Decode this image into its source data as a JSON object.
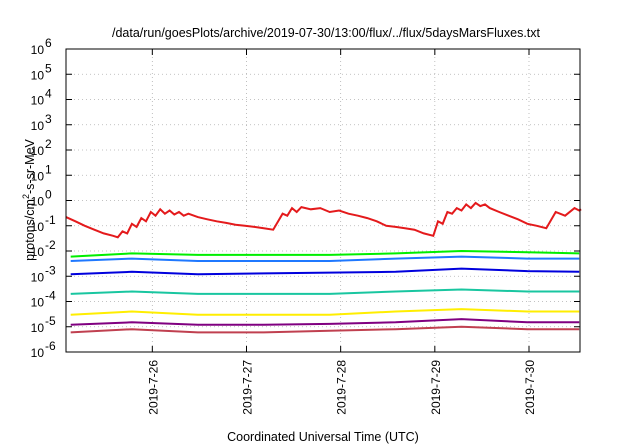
{
  "chart_data": {
    "type": "line",
    "title": "/data/run/goesPlots/archive/2019-07-30/13:00/flux/../flux/5daysMarsFluxes.txt",
    "xlabel": "Coordinated Universal Time (UTC)",
    "ylabel": "protons/cm2-s-sr-MeV",
    "yscale": "log",
    "ylim": [
      1e-06,
      1000000.0
    ],
    "xlim": [
      "2019-07-25 02:00",
      "2019-07-30 13:00"
    ],
    "grid": true,
    "legend": "none",
    "x_ticks": [
      "2019-7-26",
      "2019-7-27",
      "2019-7-28",
      "2019-7-29",
      "2019-7-30"
    ],
    "y_ticks": [
      {
        "value": 1e-06,
        "mantissa": "10",
        "exp": "-6"
      },
      {
        "value": 1e-05,
        "mantissa": "10",
        "exp": "-5"
      },
      {
        "value": 0.0001,
        "mantissa": "10",
        "exp": "-4"
      },
      {
        "value": 0.001,
        "mantissa": "10",
        "exp": "-3"
      },
      {
        "value": 0.01,
        "mantissa": "10",
        "exp": "-2"
      },
      {
        "value": 0.1,
        "mantissa": "10",
        "exp": "-1"
      },
      {
        "value": 1,
        "mantissa": "10",
        "exp": "0"
      },
      {
        "value": 10,
        "mantissa": "10",
        "exp": "1"
      },
      {
        "value": 100,
        "mantissa": "10",
        "exp": "2"
      },
      {
        "value": 1000,
        "mantissa": "10",
        "exp": "3"
      },
      {
        "value": 10000,
        "mantissa": "10",
        "exp": "4"
      },
      {
        "value": 100000,
        "mantissa": "10",
        "exp": "5"
      },
      {
        "value": 1000000,
        "mantissa": "10",
        "exp": "6"
      }
    ],
    "series": [
      {
        "color": "#e41a1c",
        "x": [
          0,
          0.1,
          0.2,
          0.3,
          0.4,
          0.5,
          0.55,
          0.6,
          0.65,
          0.7,
          0.75,
          0.8,
          0.85,
          0.9,
          0.95,
          1,
          1.05,
          1.1,
          1.15,
          1.2,
          1.25,
          1.3,
          1.4,
          1.5,
          1.6,
          1.7,
          1.8,
          1.9,
          2,
          2.1,
          2.2,
          2.3,
          2.35,
          2.4,
          2.45,
          2.5,
          2.6,
          2.7,
          2.8,
          2.9,
          3,
          3.1,
          3.2,
          3.3,
          3.4,
          3.5,
          3.6,
          3.7,
          3.8,
          3.9,
          3.95,
          4,
          4.05,
          4.1,
          4.15,
          4.2,
          4.25,
          4.3,
          4.35,
          4.4,
          4.45,
          4.5,
          4.6,
          4.7,
          4.8,
          4.9,
          5,
          5.1,
          5.2,
          5.3,
          5.4,
          5.45,
          5.47
        ],
        "y": [
          0.22,
          0.15,
          0.1,
          0.07,
          0.05,
          0.04,
          0.035,
          0.06,
          0.05,
          0.12,
          0.09,
          0.2,
          0.15,
          0.35,
          0.25,
          0.45,
          0.3,
          0.4,
          0.28,
          0.35,
          0.25,
          0.3,
          0.22,
          0.18,
          0.15,
          0.13,
          0.11,
          0.1,
          0.09,
          0.08,
          0.07,
          0.3,
          0.25,
          0.5,
          0.35,
          0.55,
          0.45,
          0.5,
          0.35,
          0.4,
          0.3,
          0.25,
          0.2,
          0.15,
          0.1,
          0.09,
          0.08,
          0.07,
          0.05,
          0.04,
          0.15,
          0.12,
          0.35,
          0.3,
          0.5,
          0.4,
          0.7,
          0.5,
          0.8,
          0.6,
          0.7,
          0.5,
          0.35,
          0.25,
          0.18,
          0.12,
          0.1,
          0.08,
          0.35,
          0.25,
          0.5,
          0.4,
          0.45
        ]
      },
      {
        "color": "#00ee00",
        "x": [
          0.05,
          0.7,
          1.4,
          2.1,
          2.8,
          3.5,
          4.2,
          4.9,
          5.45
        ],
        "y": [
          0.006,
          0.008,
          0.007,
          0.007,
          0.007,
          0.008,
          0.01,
          0.009,
          0.008
        ]
      },
      {
        "color": "#1f78ff",
        "x": [
          0.05,
          0.7,
          1.4,
          2.1,
          2.8,
          3.5,
          4.2,
          4.9,
          5.45
        ],
        "y": [
          0.004,
          0.005,
          0.004,
          0.004,
          0.004,
          0.005,
          0.006,
          0.005,
          0.005
        ]
      },
      {
        "color": "#0000dd",
        "x": [
          0.05,
          0.7,
          1.4,
          2.1,
          2.8,
          3.5,
          4.2,
          4.9,
          5.45
        ],
        "y": [
          0.0012,
          0.0015,
          0.0012,
          0.0013,
          0.0014,
          0.0015,
          0.002,
          0.0016,
          0.0015
        ]
      },
      {
        "color": "#19c6a0",
        "x": [
          0.05,
          0.7,
          1.4,
          2.1,
          2.8,
          3.5,
          4.2,
          4.9,
          5.45
        ],
        "y": [
          0.0002,
          0.00025,
          0.0002,
          0.0002,
          0.0002,
          0.00025,
          0.0003,
          0.00025,
          0.00025
        ]
      },
      {
        "color": "#ffee00",
        "x": [
          0.05,
          0.7,
          1.4,
          2.1,
          2.8,
          3.5,
          4.2,
          4.9,
          5.45
        ],
        "y": [
          3e-05,
          4e-05,
          3e-05,
          3e-05,
          3e-05,
          4e-05,
          5e-05,
          4e-05,
          4e-05
        ]
      },
      {
        "color": "#800080",
        "x": [
          0.05,
          0.7,
          1.4,
          2.1,
          2.8,
          3.5,
          4.2,
          4.9,
          5.45
        ],
        "y": [
          1.2e-05,
          1.5e-05,
          1.2e-05,
          1.2e-05,
          1.3e-05,
          1.5e-05,
          2e-05,
          1.5e-05,
          1.5e-05
        ]
      },
      {
        "color": "#c04050",
        "x": [
          0.05,
          0.7,
          1.4,
          2.1,
          2.8,
          3.5,
          4.2,
          4.9,
          5.45
        ],
        "y": [
          6e-06,
          8e-06,
          6e-06,
          6e-06,
          7e-06,
          8e-06,
          1e-05,
          8e-06,
          8e-06
        ]
      }
    ]
  }
}
